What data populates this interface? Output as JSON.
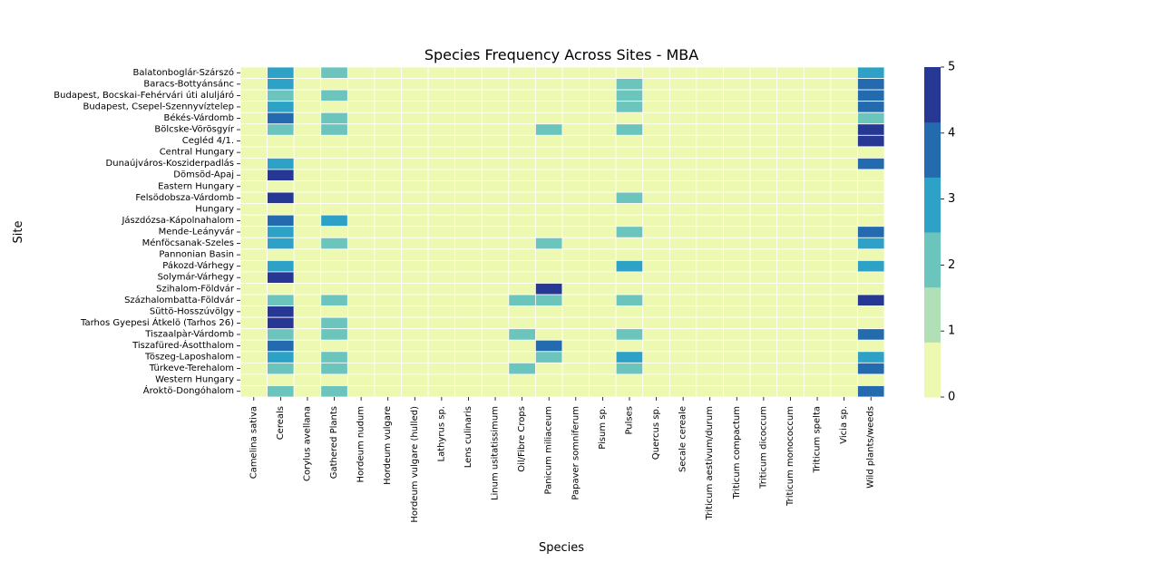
{
  "chart_data": {
    "type": "heatmap",
    "title": "Species Frequency Across Sites - MBA",
    "xlabel": "Species",
    "ylabel": "Site",
    "x_categories": [
      "Camelina sativa",
      "Cereals",
      "Corylus avellana",
      "Gathered Plants",
      "Hordeum nudum",
      "Hordeum vulgare",
      "Hordeum vulgare (hulled)",
      "Lathyrus sp.",
      "Lens culinaris",
      "Linum usitatissimum",
      "Oil/Fibre Crops",
      "Panicum miliaceum",
      "Papaver somniferum",
      "Pisum sp.",
      "Pulses",
      "Quercus sp.",
      "Secale cereale",
      "Triticum aestivum/durum",
      "Triticum compactum",
      "Triticum dicoccum",
      "Triticum monococcum",
      "Triticum spelta",
      "Vicia sp.",
      "Wild plants/weeds"
    ],
    "y_categories": [
      "Balatonboglár-Szárszó",
      "Baracs-Bottyánsánc",
      "Budapest, Bocskai-Fehérvári úti aluljáró",
      "Budapest, Csepel-Szennyvíztelep",
      "Békés-Várdomb",
      "Bölcske-Vörösgyír",
      "Cegléd 4/1.",
      "Central Hungary",
      "Dunaújváros-Kosziderpadlás",
      "Dömsöd-Apaj",
      "Eastern Hungary",
      "Felsödobsza-Várdomb",
      "Hungary",
      "Jászdózsa-Kápolnahalom",
      "Mende-Leányvár",
      "Ménföcsanak-Szeles",
      "Pannonian Basin",
      "Pákozd-Várhegy",
      "Solymár-Várhegy",
      "Szihalom-Földvár",
      "Százhalombatta-Földvár",
      "Süttö-Hosszúvölgy",
      "Tarhos Gyepesi Átkelö (Tarhos 26)",
      "Tiszaalpàr-Várdomb",
      "Tiszafüred-Ásotthalom",
      "Töszeg-Laposhalom",
      "Türkeve-Terehalom",
      "Western Hungary",
      "Ároktö-Dongóhalom"
    ],
    "values": [
      [
        0,
        3,
        0,
        2,
        0,
        0,
        0,
        0,
        0,
        0,
        0,
        0,
        0,
        0,
        0,
        0,
        0,
        0,
        0,
        0,
        0,
        0,
        0,
        3
      ],
      [
        0,
        3,
        0,
        0,
        0,
        0,
        0,
        0,
        0,
        0,
        0,
        0,
        0,
        0,
        2,
        0,
        0,
        0,
        0,
        0,
        0,
        0,
        0,
        4
      ],
      [
        0,
        2,
        0,
        2,
        0,
        0,
        0,
        0,
        0,
        0,
        0,
        0,
        0,
        0,
        2,
        0,
        0,
        0,
        0,
        0,
        0,
        0,
        0,
        4
      ],
      [
        0,
        3,
        0,
        0,
        0,
        0,
        0,
        0,
        0,
        0,
        0,
        0,
        0,
        0,
        2,
        0,
        0,
        0,
        0,
        0,
        0,
        0,
        0,
        4
      ],
      [
        0,
        4,
        0,
        2,
        0,
        0,
        0,
        0,
        0,
        0,
        0,
        0,
        0,
        0,
        0,
        0,
        0,
        0,
        0,
        0,
        0,
        0,
        0,
        2
      ],
      [
        0,
        2,
        0,
        2,
        0,
        0,
        0,
        0,
        0,
        0,
        0,
        2,
        0,
        0,
        2,
        0,
        0,
        0,
        0,
        0,
        0,
        0,
        0,
        5
      ],
      [
        0,
        0,
        0,
        0,
        0,
        0,
        0,
        0,
        0,
        0,
        0,
        0,
        0,
        0,
        0,
        0,
        0,
        0,
        0,
        0,
        0,
        0,
        0,
        5
      ],
      [
        0,
        0,
        0,
        0,
        0,
        0,
        0,
        0,
        0,
        0,
        0,
        0,
        0,
        0,
        0,
        0,
        0,
        0,
        0,
        0,
        0,
        0,
        0,
        0
      ],
      [
        0,
        3,
        0,
        0,
        0,
        0,
        0,
        0,
        0,
        0,
        0,
        0,
        0,
        0,
        0,
        0,
        0,
        0,
        0,
        0,
        0,
        0,
        0,
        4
      ],
      [
        0,
        5,
        0,
        0,
        0,
        0,
        0,
        0,
        0,
        0,
        0,
        0,
        0,
        0,
        0,
        0,
        0,
        0,
        0,
        0,
        0,
        0,
        0,
        0
      ],
      [
        0,
        0,
        0,
        0,
        0,
        0,
        0,
        0,
        0,
        0,
        0,
        0,
        0,
        0,
        0,
        0,
        0,
        0,
        0,
        0,
        0,
        0,
        0,
        0
      ],
      [
        0,
        5,
        0,
        0,
        0,
        0,
        0,
        0,
        0,
        0,
        0,
        0,
        0,
        0,
        2,
        0,
        0,
        0,
        0,
        0,
        0,
        0,
        0,
        0
      ],
      [
        0,
        0,
        0,
        0,
        0,
        0,
        0,
        0,
        0,
        0,
        0,
        0,
        0,
        0,
        0,
        0,
        0,
        0,
        0,
        0,
        0,
        0,
        0,
        0
      ],
      [
        0,
        4,
        0,
        3,
        0,
        0,
        0,
        0,
        0,
        0,
        0,
        0,
        0,
        0,
        0,
        0,
        0,
        0,
        0,
        0,
        0,
        0,
        0,
        0
      ],
      [
        0,
        3,
        0,
        0,
        0,
        0,
        0,
        0,
        0,
        0,
        0,
        0,
        0,
        0,
        2,
        0,
        0,
        0,
        0,
        0,
        0,
        0,
        0,
        4
      ],
      [
        0,
        3,
        0,
        2,
        0,
        0,
        0,
        0,
        0,
        0,
        0,
        2,
        0,
        0,
        0,
        0,
        0,
        0,
        0,
        0,
        0,
        0,
        0,
        3
      ],
      [
        0,
        0,
        0,
        0,
        0,
        0,
        0,
        0,
        0,
        0,
        0,
        0,
        0,
        0,
        0,
        0,
        0,
        0,
        0,
        0,
        0,
        0,
        0,
        0
      ],
      [
        0,
        3,
        0,
        0,
        0,
        0,
        0,
        0,
        0,
        0,
        0,
        0,
        0,
        0,
        3,
        0,
        0,
        0,
        0,
        0,
        0,
        0,
        0,
        3
      ],
      [
        0,
        5,
        0,
        0,
        0,
        0,
        0,
        0,
        0,
        0,
        0,
        0,
        0,
        0,
        0,
        0,
        0,
        0,
        0,
        0,
        0,
        0,
        0,
        0
      ],
      [
        0,
        0,
        0,
        0,
        0,
        0,
        0,
        0,
        0,
        0,
        0,
        5,
        0,
        0,
        0,
        0,
        0,
        0,
        0,
        0,
        0,
        0,
        0,
        0
      ],
      [
        0,
        2,
        0,
        2,
        0,
        0,
        0,
        0,
        0,
        0,
        2,
        2,
        0,
        0,
        2,
        0,
        0,
        0,
        0,
        0,
        0,
        0,
        0,
        5
      ],
      [
        0,
        5,
        0,
        0,
        0,
        0,
        0,
        0,
        0,
        0,
        0,
        0,
        0,
        0,
        0,
        0,
        0,
        0,
        0,
        0,
        0,
        0,
        0,
        0
      ],
      [
        0,
        5,
        0,
        2,
        0,
        0,
        0,
        0,
        0,
        0,
        0,
        0,
        0,
        0,
        0,
        0,
        0,
        0,
        0,
        0,
        0,
        0,
        0,
        0
      ],
      [
        0,
        2,
        0,
        2,
        0,
        0,
        0,
        0,
        0,
        0,
        2,
        0,
        0,
        0,
        2,
        0,
        0,
        0,
        0,
        0,
        0,
        0,
        0,
        4
      ],
      [
        0,
        4,
        0,
        0,
        0,
        0,
        0,
        0,
        0,
        0,
        0,
        4,
        0,
        0,
        0,
        0,
        0,
        0,
        0,
        0,
        0,
        0,
        0,
        0
      ],
      [
        0,
        3,
        0,
        2,
        0,
        0,
        0,
        0,
        0,
        0,
        0,
        2,
        0,
        0,
        3,
        0,
        0,
        0,
        0,
        0,
        0,
        0,
        0,
        3
      ],
      [
        0,
        2,
        0,
        2,
        0,
        0,
        0,
        0,
        0,
        0,
        2,
        0,
        0,
        0,
        2,
        0,
        0,
        0,
        0,
        0,
        0,
        0,
        0,
        4
      ],
      [
        0,
        0,
        0,
        0,
        0,
        0,
        0,
        0,
        0,
        0,
        0,
        0,
        0,
        0,
        0,
        0,
        0,
        0,
        0,
        0,
        0,
        0,
        0,
        0
      ],
      [
        0,
        2,
        0,
        2,
        0,
        0,
        0,
        0,
        0,
        0,
        0,
        0,
        0,
        0,
        0,
        0,
        0,
        0,
        0,
        0,
        0,
        0,
        0,
        4
      ]
    ],
    "colorbar": {
      "range": [
        0,
        5
      ],
      "ticks": [
        "0",
        "1",
        "2",
        "3",
        "4",
        "5"
      ],
      "colors": [
        "#edf8b1",
        "#b1e0b6",
        "#6cc5bd",
        "#2ea2c6",
        "#236aaf",
        "#273894"
      ]
    },
    "grid": false
  }
}
